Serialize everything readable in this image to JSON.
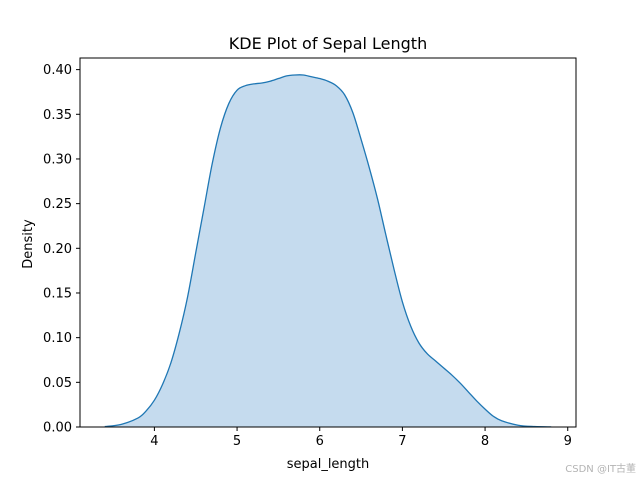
{
  "chart_data": {
    "type": "area",
    "title": "KDE Plot of Sepal Length",
    "xlabel": "sepal_length",
    "ylabel": "Density",
    "xlim": [
      3.1,
      9.1
    ],
    "ylim": [
      0,
      0.413
    ],
    "xticks": [
      4,
      5,
      6,
      7,
      8,
      9
    ],
    "yticks": [
      0.0,
      0.05,
      0.1,
      0.15,
      0.2,
      0.25,
      0.3,
      0.35,
      0.4
    ],
    "grid": false,
    "series": [
      {
        "line_color": "#1f77b4",
        "fill_color": "#c5dbee",
        "x": [
          3.4,
          3.6,
          3.8,
          3.9,
          4.0,
          4.1,
          4.2,
          4.3,
          4.4,
          4.5,
          4.6,
          4.7,
          4.8,
          4.9,
          5.0,
          5.1,
          5.2,
          5.3,
          5.4,
          5.5,
          5.6,
          5.7,
          5.8,
          5.9,
          6.0,
          6.1,
          6.2,
          6.3,
          6.4,
          6.5,
          6.6,
          6.7,
          6.8,
          6.9,
          7.0,
          7.1,
          7.2,
          7.3,
          7.4,
          7.5,
          7.6,
          7.7,
          7.8,
          7.9,
          8.0,
          8.1,
          8.2,
          8.4,
          8.6,
          8.8
        ],
        "y": [
          0.0005,
          0.003,
          0.01,
          0.018,
          0.03,
          0.048,
          0.072,
          0.105,
          0.145,
          0.195,
          0.245,
          0.295,
          0.335,
          0.362,
          0.377,
          0.382,
          0.384,
          0.385,
          0.387,
          0.39,
          0.393,
          0.394,
          0.394,
          0.392,
          0.39,
          0.387,
          0.382,
          0.372,
          0.352,
          0.322,
          0.29,
          0.255,
          0.215,
          0.176,
          0.14,
          0.113,
          0.094,
          0.082,
          0.074,
          0.066,
          0.058,
          0.049,
          0.039,
          0.029,
          0.02,
          0.012,
          0.007,
          0.002,
          0.0005,
          0.0001
        ]
      }
    ]
  },
  "watermark": "CSDN @IT古董"
}
